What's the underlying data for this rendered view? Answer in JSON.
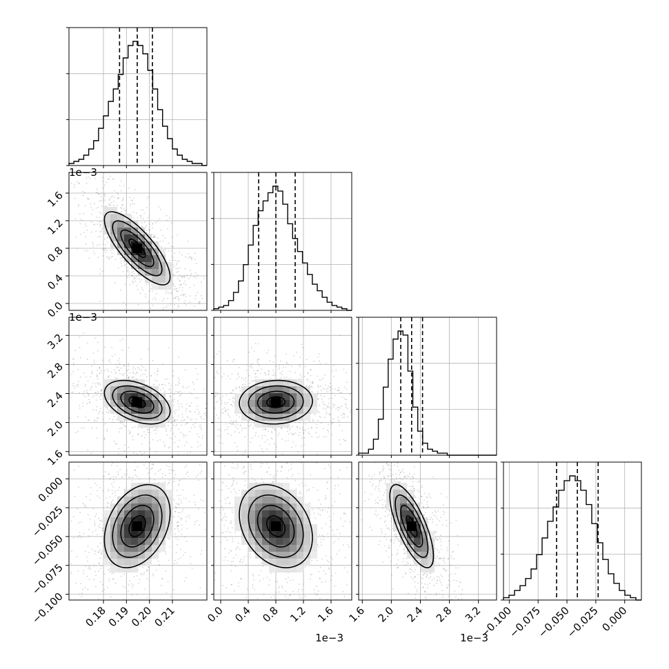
{
  "chart_data": {
    "type": "corner",
    "n_params": 4,
    "params": [
      {
        "range": [
          0.165,
          0.225
        ],
        "ticks": [
          0.18,
          0.19,
          0.2,
          0.21
        ],
        "tick_labels": [
          "0.18",
          "0.19",
          "0.20",
          "0.21"
        ],
        "offset_text": "",
        "quantiles": [
          0.187,
          0.1947,
          0.2013
        ]
      },
      {
        "range": [
          -0.0001,
          0.0019
        ],
        "ticks": [
          0.0,
          0.0004,
          0.0008,
          0.0012,
          0.0016
        ],
        "tick_labels": [
          "0.0",
          "0.4",
          "0.8",
          "1.2",
          "1.6"
        ],
        "offset_text": "1e−3",
        "quantiles": [
          0.00055,
          0.0008,
          0.00108
        ]
      },
      {
        "range": [
          0.00155,
          0.00345
        ],
        "ticks": [
          0.0016,
          0.002,
          0.0024,
          0.0028,
          0.0032
        ],
        "tick_labels": [
          "1.6",
          "2.0",
          "2.4",
          "2.8",
          "3.2"
        ],
        "offset_text": "1e−3",
        "quantiles": [
          0.00213,
          0.00228,
          0.00243
        ]
      },
      {
        "range": [
          -0.105,
          0.0145
        ],
        "ticks": [
          -0.1,
          -0.075,
          -0.05,
          -0.025,
          0.0
        ],
        "tick_labels": [
          "−0.100",
          "−0.075",
          "−0.050",
          "−0.025",
          "0.000"
        ],
        "offset_text": "",
        "quantiles": [
          -0.059,
          -0.041,
          -0.023
        ]
      }
    ],
    "histograms": [
      {
        "counts": [
          1,
          2,
          3,
          5,
          8,
          12,
          18,
          24,
          31,
          37,
          44,
          52,
          58,
          60,
          58,
          54,
          46,
          37,
          27,
          19,
          13,
          8,
          5,
          3,
          2,
          1,
          1,
          0
        ]
      },
      {
        "counts": [
          1,
          2,
          3,
          6,
          11,
          18,
          28,
          40,
          52,
          61,
          67,
          72,
          76,
          73,
          65,
          53,
          44,
          36,
          29,
          22,
          16,
          12,
          8,
          5,
          3,
          2,
          1,
          0
        ]
      },
      {
        "counts": [
          1,
          1,
          3,
          8,
          18,
          34,
          48,
          58,
          62,
          60,
          42,
          24,
          12,
          6,
          3,
          2,
          1,
          1,
          0,
          0,
          0,
          0,
          0,
          0,
          0,
          0,
          0,
          0
        ]
      },
      {
        "counts": [
          1,
          2,
          4,
          6,
          9,
          13,
          19,
          26,
          33,
          39,
          46,
          50,
          52,
          50,
          46,
          40,
          32,
          24,
          17,
          11,
          7,
          4,
          2,
          1,
          0
        ]
      }
    ],
    "correlations": {
      "1-0": -0.78,
      "2-0": -0.42,
      "2-1": 0.05,
      "3-0": 0.33,
      "3-1": -0.28,
      "3-2": -0.72
    },
    "grid": true,
    "line_color": "#000000",
    "density_color": "#000000",
    "scatter_color": "#7f7f7f"
  }
}
